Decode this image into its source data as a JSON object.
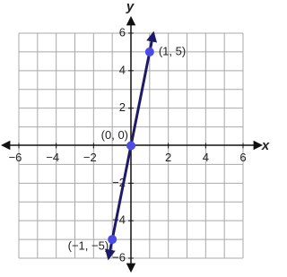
{
  "chart_data": {
    "type": "line",
    "x_label": "x",
    "y_label": "y",
    "x": [
      -1,
      0,
      1
    ],
    "values": [
      -5,
      0,
      5
    ],
    "point_labels": [
      "(−1, −5)",
      "(0, 0)",
      "(1, 5)"
    ],
    "line_color": "#1d1a66",
    "point_color": "#4b4be6",
    "xlim": [
      -6,
      6
    ],
    "ylim": [
      -6,
      6
    ],
    "xticks": [
      {
        "value": -6,
        "label": "−6"
      },
      {
        "value": -4,
        "label": "−4"
      },
      {
        "value": -2,
        "label": "−2"
      },
      2,
      4,
      6
    ],
    "yticks": [
      {
        "value": -6,
        "label": "−6"
      },
      {
        "value": -4,
        "label": "−4"
      },
      {
        "value": -2,
        "label": "−2"
      },
      2,
      4,
      6
    ],
    "xminor": [
      -5,
      -3,
      -1,
      1,
      3,
      5
    ],
    "yminor": [
      -5,
      -3,
      -1,
      1,
      3,
      5
    ],
    "grid": true
  }
}
